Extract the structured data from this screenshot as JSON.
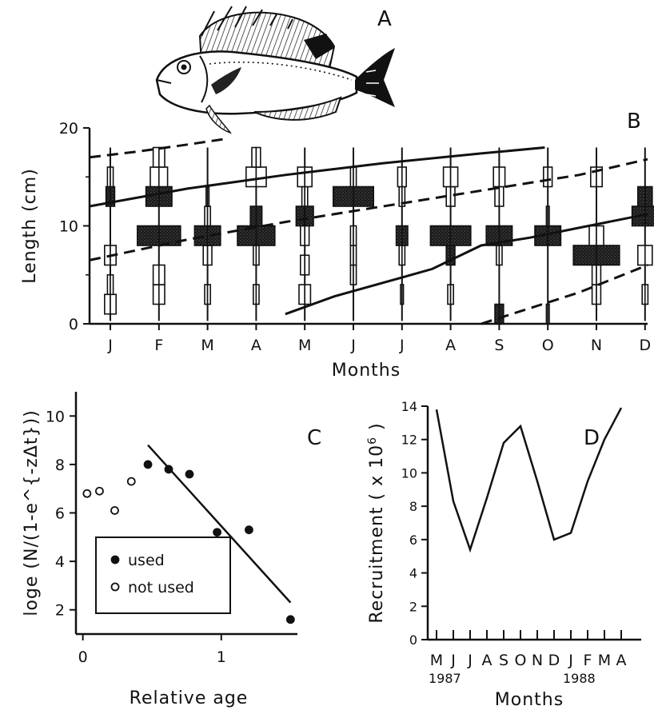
{
  "figure": {
    "panel_labels": [
      "A",
      "B",
      "C",
      "D"
    ]
  },
  "chart_data": [
    {
      "panel": "B",
      "type": "length-frequency",
      "xlabel": "Months",
      "ylabel": "Length (cm)",
      "ylim": [
        0,
        20
      ],
      "yticks": [
        "0",
        "10",
        "20"
      ],
      "categories": [
        "J",
        "F",
        "M",
        "A",
        "M",
        "J",
        "J",
        "A",
        "S",
        "O",
        "N",
        "D"
      ],
      "histograms": [
        {
          "bins": [
            {
              "l": 2,
              "w": 0.4,
              "s": 0
            },
            {
              "l": 4,
              "w": 0.2,
              "s": 0
            },
            {
              "l": 7,
              "w": 0.4,
              "s": 0
            },
            {
              "l": 13,
              "w": 0.3,
              "s": 1
            },
            {
              "l": 15,
              "w": 0.2,
              "s": 0
            }
          ]
        },
        {
          "bins": [
            {
              "l": 3,
              "w": 0.4,
              "s": 0
            },
            {
              "l": 5,
              "w": 0.4,
              "s": 0
            },
            {
              "l": 9,
              "w": 1.5,
              "s": 1
            },
            {
              "l": 13,
              "w": 0.9,
              "s": 1
            },
            {
              "l": 15,
              "w": 0.6,
              "s": 0
            },
            {
              "l": 17,
              "w": 0.4,
              "s": 0
            }
          ]
        },
        {
          "bins": [
            {
              "l": 3,
              "w": 0.2,
              "s": 0
            },
            {
              "l": 7,
              "w": 0.3,
              "s": 0
            },
            {
              "l": 9,
              "w": 0.9,
              "s": 1
            },
            {
              "l": 11,
              "w": 0.2,
              "s": 0
            },
            {
              "l": 13,
              "w": 0.1,
              "s": 0
            }
          ]
        },
        {
          "bins": [
            {
              "l": 3,
              "w": 0.2,
              "s": 0
            },
            {
              "l": 7,
              "w": 0.2,
              "s": 0
            },
            {
              "l": 9,
              "w": 1.3,
              "s": 1
            },
            {
              "l": 11,
              "w": 0.4,
              "s": 1
            },
            {
              "l": 15,
              "w": 0.7,
              "s": 0
            },
            {
              "l": 17,
              "w": 0.3,
              "s": 0
            }
          ]
        },
        {
          "bins": [
            {
              "l": 3,
              "w": 0.4,
              "s": 0
            },
            {
              "l": 6,
              "w": 0.3,
              "s": 0
            },
            {
              "l": 9,
              "w": 0.3,
              "s": 0
            },
            {
              "l": 11,
              "w": 0.6,
              "s": 1
            },
            {
              "l": 13,
              "w": 0.2,
              "s": 0
            },
            {
              "l": 15,
              "w": 0.5,
              "s": 0
            }
          ]
        },
        {
          "bins": [
            {
              "l": 5,
              "w": 0.2,
              "s": 0
            },
            {
              "l": 7,
              "w": 0.2,
              "s": 0
            },
            {
              "l": 9,
              "w": 0.2,
              "s": 0
            },
            {
              "l": 13,
              "w": 1.4,
              "s": 1
            },
            {
              "l": 15,
              "w": 0.2,
              "s": 0
            }
          ]
        },
        {
          "bins": [
            {
              "l": 3,
              "w": 0.1,
              "s": 0
            },
            {
              "l": 7,
              "w": 0.2,
              "s": 0
            },
            {
              "l": 9,
              "w": 0.4,
              "s": 1
            },
            {
              "l": 13,
              "w": 0.2,
              "s": 0
            },
            {
              "l": 15,
              "w": 0.3,
              "s": 0
            }
          ]
        },
        {
          "bins": [
            {
              "l": 3,
              "w": 0.2,
              "s": 0
            },
            {
              "l": 7,
              "w": 0.3,
              "s": 1
            },
            {
              "l": 9,
              "w": 1.4,
              "s": 1
            },
            {
              "l": 13,
              "w": 0.3,
              "s": 0
            },
            {
              "l": 15,
              "w": 0.5,
              "s": 0
            }
          ]
        },
        {
          "bins": [
            {
              "l": 1,
              "w": 0.3,
              "s": 1
            },
            {
              "l": 7,
              "w": 0.2,
              "s": 0
            },
            {
              "l": 9,
              "w": 0.9,
              "s": 1
            },
            {
              "l": 13,
              "w": 0.3,
              "s": 0
            },
            {
              "l": 15,
              "w": 0.4,
              "s": 0
            }
          ]
        },
        {
          "bins": [
            {
              "l": 1,
              "w": 0.1,
              "s": 0
            },
            {
              "l": 9,
              "w": 0.9,
              "s": 1
            },
            {
              "l": 11,
              "w": 0.1,
              "s": 0
            },
            {
              "l": 15,
              "w": 0.3,
              "s": 0
            }
          ]
        },
        {
          "bins": [
            {
              "l": 3,
              "w": 0.3,
              "s": 0
            },
            {
              "l": 5,
              "w": 0.3,
              "s": 0
            },
            {
              "l": 7,
              "w": 1.6,
              "s": 1
            },
            {
              "l": 9,
              "w": 0.5,
              "s": 0
            },
            {
              "l": 15,
              "w": 0.4,
              "s": 0
            }
          ]
        },
        {
          "bins": [
            {
              "l": 3,
              "w": 0.2,
              "s": 0
            },
            {
              "l": 7,
              "w": 0.5,
              "s": 0
            },
            {
              "l": 11,
              "w": 0.9,
              "s": 1
            },
            {
              "l": 13,
              "w": 0.5,
              "s": 1
            }
          ]
        }
      ],
      "growth_curves": [
        {
          "style": "dashed",
          "x": [
            0.0,
            1.0,
            2.0,
            2.8
          ],
          "y": [
            17.0,
            17.6,
            18.3,
            18.9
          ]
        },
        {
          "style": "solid",
          "x": [
            0.0,
            2.0,
            4.0,
            6.0,
            8.0,
            9.3
          ],
          "y": [
            12.0,
            13.8,
            15.2,
            16.4,
            17.4,
            18.0
          ]
        },
        {
          "style": "dashed",
          "x": [
            0.0,
            2.0,
            4.0,
            6.0,
            8.0,
            10.0,
            11.4
          ],
          "y": [
            6.5,
            8.6,
            10.4,
            12.0,
            13.6,
            15.2,
            16.8
          ]
        },
        {
          "style": "solid",
          "x": [
            4.0,
            5.0,
            6.0,
            7.0,
            8.0,
            9.0,
            10.0,
            11.4
          ],
          "y": [
            1.0,
            2.8,
            4.2,
            5.6,
            8.0,
            8.8,
            9.8,
            11.2
          ]
        },
        {
          "style": "dashed",
          "x": [
            8.0,
            9.0,
            10.0,
            11.4
          ],
          "y": [
            0.0,
            1.6,
            3.2,
            6.0
          ]
        }
      ]
    },
    {
      "panel": "C",
      "type": "scatter",
      "xlabel": "Relative age",
      "ylabel": "loge (N/(1-e^{-zΔt}))",
      "xlim": [
        -0.05,
        1.55
      ],
      "ylim": [
        1,
        11
      ],
      "xticks": [
        "0",
        "1"
      ],
      "yticks": [
        "2",
        "4",
        "6",
        "8",
        "10"
      ],
      "series": [
        {
          "name": "used",
          "marker": "filled",
          "x": [
            0.47,
            0.62,
            0.77,
            0.97,
            1.2,
            1.5
          ],
          "y": [
            8.0,
            7.8,
            7.6,
            5.2,
            5.3,
            1.6
          ]
        },
        {
          "name": "not used",
          "marker": "open",
          "x": [
            0.03,
            0.12,
            0.23,
            0.35
          ],
          "y": [
            6.8,
            6.9,
            6.1,
            7.3
          ]
        }
      ],
      "regression": {
        "x": [
          0.47,
          1.5
        ],
        "y": [
          8.8,
          2.3
        ]
      }
    },
    {
      "panel": "D",
      "type": "line",
      "xlabel": "Months",
      "ylabel": "Recruitment ( x 10",
      "ylabel_superscript": "6",
      "ylabel_close": ")",
      "ylim": [
        0,
        14
      ],
      "yticks": [
        "0",
        "2",
        "4",
        "6",
        "8",
        "10",
        "12",
        "14"
      ],
      "categories": [
        "M",
        "J",
        "J",
        "A",
        "S",
        "O",
        "N",
        "D",
        "J",
        "F",
        "M",
        "A"
      ],
      "year_labels": [
        {
          "text": "1987",
          "at": 0
        },
        {
          "text": "1988",
          "at": 8
        }
      ],
      "series": [
        {
          "values": [
            13.8,
            8.3,
            5.4,
            8.5,
            11.8,
            12.8,
            9.5,
            6.0,
            6.4,
            9.5,
            12.0,
            13.9
          ]
        }
      ]
    }
  ]
}
